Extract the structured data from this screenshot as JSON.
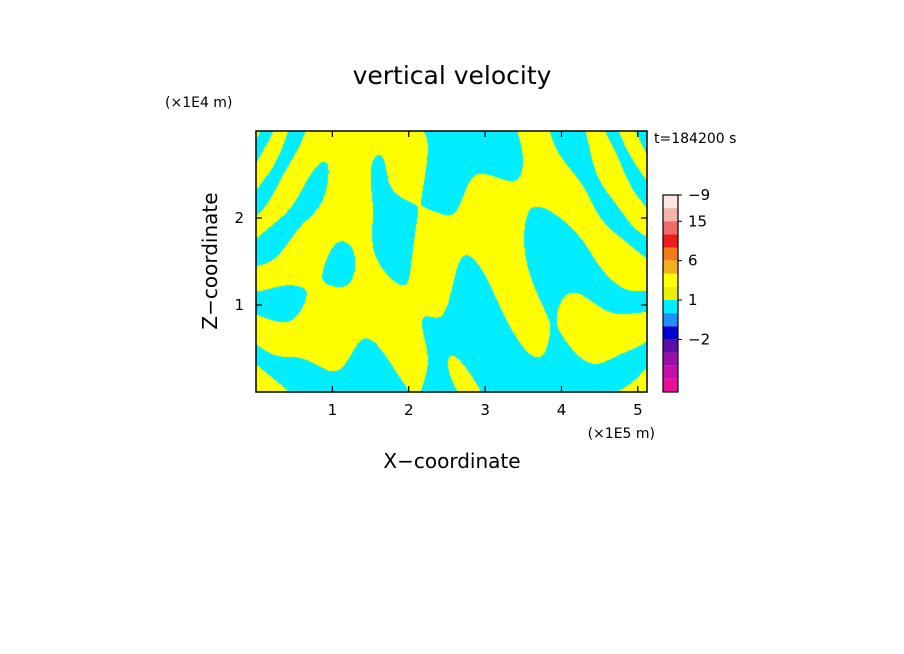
{
  "chart_data": {
    "type": "heatmap",
    "title": "vertical velocity",
    "xlabel": "X−coordinate",
    "ylabel": "Z−coordinate",
    "x_unit": "(×1E5 m)",
    "y_unit": "(×1E4 m)",
    "time_label": "t=184200 s",
    "xlim": [
      0,
      5.12
    ],
    "ylim": [
      0,
      3.0
    ],
    "x_ticks": [
      1,
      2,
      3,
      4,
      5
    ],
    "x_tick_labels": [
      "1",
      "2",
      "3",
      "4",
      "5"
    ],
    "y_ticks": [
      1,
      2
    ],
    "y_tick_labels": [
      "1",
      "2"
    ],
    "colorbar": {
      "tick_values": [
        15,
        6,
        1,
        -2,
        -9
      ],
      "tick_labels": [
        "15",
        "6",
        "1",
        "−2",
        "−9"
      ],
      "levels": [
        {
          "value": 21,
          "color": "#fbe8e2"
        },
        {
          "value": 15,
          "color": "#f4b3ad"
        },
        {
          "value": 10,
          "color": "#ee6b68"
        },
        {
          "value": 8,
          "color": "#ee1e1e"
        },
        {
          "value": 6,
          "color": "#ef7d18"
        },
        {
          "value": 4,
          "color": "#f0b11d"
        },
        {
          "value": 1.5,
          "color": "#ffff00"
        },
        {
          "value": 1,
          "color": "#eeee00"
        },
        {
          "value": 0,
          "color": "#00eeff"
        },
        {
          "value": -1,
          "color": "#1e90ff"
        },
        {
          "value": -2,
          "color": "#0000cc"
        },
        {
          "value": -4,
          "color": "#5b0fa8"
        },
        {
          "value": -6,
          "color": "#9a0fa8"
        },
        {
          "value": -8,
          "color": "#c40fa8"
        },
        {
          "value": -10,
          "color": "#e8109a"
        }
      ]
    },
    "field_colors": {
      "positive": "#ffff00",
      "negative": "#00eeff"
    }
  }
}
